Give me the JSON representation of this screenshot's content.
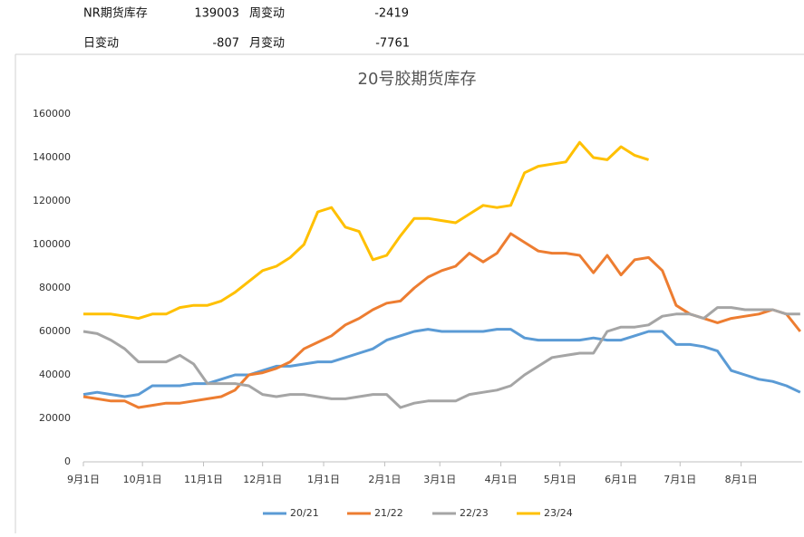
{
  "header": {
    "stock_label": "NR期货库存",
    "stock": 139003,
    "week_label": "周变动",
    "week": -2419,
    "day_label": "日变动",
    "day": -807,
    "month_label": "月变动",
    "month": -7761
  },
  "chart_data": {
    "type": "line",
    "title": "20号胶期货库存",
    "x": [
      0,
      7,
      14,
      21,
      28,
      35,
      42,
      49,
      56,
      63,
      70,
      77,
      84,
      91,
      98,
      105,
      112,
      119,
      126,
      133,
      140,
      147,
      154,
      161,
      168,
      175,
      182,
      189,
      196,
      203,
      210,
      217,
      224,
      231,
      238,
      245,
      252,
      259,
      266,
      273,
      280,
      287,
      294,
      301,
      308,
      315,
      322,
      329,
      336,
      343,
      350,
      357,
      364
    ],
    "xlim": [
      0,
      365
    ],
    "xticks": [
      {
        "value": 0,
        "label": "9月1日"
      },
      {
        "value": 30,
        "label": "10月1日"
      },
      {
        "value": 61,
        "label": "11月1日"
      },
      {
        "value": 91,
        "label": "12月1日"
      },
      {
        "value": 122,
        "label": "1月1日"
      },
      {
        "value": 153,
        "label": "2月1日"
      },
      {
        "value": 181,
        "label": "3月1日"
      },
      {
        "value": 212,
        "label": "4月1日"
      },
      {
        "value": 242,
        "label": "5月1日"
      },
      {
        "value": 273,
        "label": "6月1日"
      },
      {
        "value": 303,
        "label": "7月1日"
      },
      {
        "value": 334,
        "label": "8月1日"
      }
    ],
    "ylim": [
      0,
      160000
    ],
    "yticks": [
      0,
      20000,
      40000,
      60000,
      80000,
      100000,
      120000,
      140000,
      160000
    ],
    "series": [
      {
        "name": "20/21",
        "color": "#5b9bd5",
        "values": [
          31000,
          32000,
          31000,
          30000,
          31000,
          35000,
          35000,
          35000,
          36000,
          36000,
          38000,
          40000,
          40000,
          42000,
          44000,
          44000,
          45000,
          46000,
          46000,
          48000,
          50000,
          52000,
          56000,
          58000,
          60000,
          61000,
          60000,
          60000,
          60000,
          60000,
          61000,
          61000,
          57000,
          56000,
          56000,
          56000,
          56000,
          57000,
          56000,
          56000,
          58000,
          60000,
          60000,
          54000,
          54000,
          53000,
          51000,
          42000,
          40000,
          38000,
          37000,
          35000,
          32000
        ]
      },
      {
        "name": "21/22",
        "color": "#ed7d31",
        "values": [
          30000,
          29000,
          28000,
          28000,
          25000,
          26000,
          27000,
          27000,
          28000,
          29000,
          30000,
          33000,
          40000,
          41000,
          43000,
          46000,
          52000,
          55000,
          58000,
          63000,
          66000,
          70000,
          73000,
          74000,
          80000,
          85000,
          88000,
          90000,
          96000,
          92000,
          96000,
          105000,
          101000,
          97000,
          96000,
          96000,
          95000,
          87000,
          95000,
          86000,
          93000,
          94000,
          88000,
          72000,
          68000,
          66000,
          64000,
          66000,
          67000,
          68000,
          70000,
          68000,
          60000
        ]
      },
      {
        "name": "22/23",
        "color": "#a5a5a5",
        "values": [
          60000,
          59000,
          56000,
          52000,
          46000,
          46000,
          46000,
          49000,
          45000,
          36000,
          36000,
          36000,
          35000,
          31000,
          30000,
          31000,
          31000,
          30000,
          29000,
          29000,
          30000,
          31000,
          31000,
          25000,
          27000,
          28000,
          28000,
          28000,
          31000,
          32000,
          33000,
          35000,
          40000,
          44000,
          48000,
          49000,
          50000,
          50000,
          60000,
          62000,
          62000,
          63000,
          67000,
          68000,
          68000,
          66000,
          71000,
          71000,
          70000,
          70000,
          70000,
          68000,
          68000
        ]
      },
      {
        "name": "23/24",
        "color": "#ffc000",
        "values": [
          68000,
          68000,
          68000,
          67000,
          66000,
          68000,
          68000,
          71000,
          72000,
          72000,
          74000,
          78000,
          83000,
          88000,
          90000,
          94000,
          100000,
          115000,
          117000,
          108000,
          106000,
          93000,
          95000,
          104000,
          112000,
          112000,
          111000,
          110000,
          114000,
          118000,
          117000,
          118000,
          133000,
          136000,
          137000,
          138000,
          147000,
          140000,
          139000,
          145000,
          141000,
          139000,
          null,
          null,
          null,
          null,
          null,
          null,
          null,
          null,
          null,
          null,
          null
        ]
      }
    ]
  }
}
